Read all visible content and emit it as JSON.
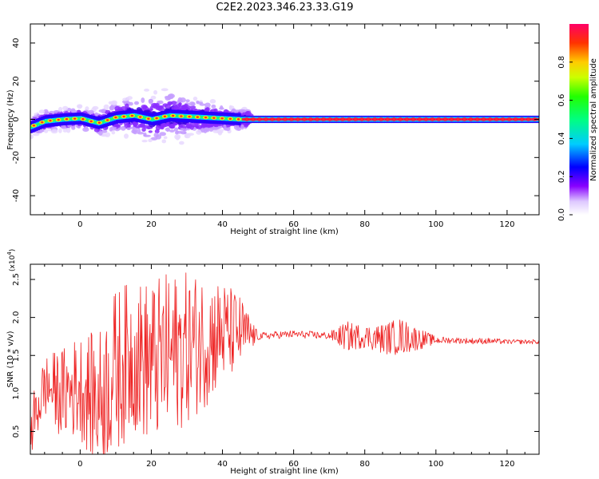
{
  "title": "C2E2.2023.346.23.33.G19",
  "chart_data": [
    {
      "type": "heatmap",
      "name": "spectrogram",
      "xlabel": "Height of straight line (km)",
      "ylabel": "Frequency (Hz)",
      "xlim": [
        -14,
        129
      ],
      "ylim": [
        -50,
        50
      ],
      "xticks": [
        0,
        20,
        40,
        60,
        80,
        100,
        120
      ],
      "yticks": [
        -40,
        -20,
        0,
        20,
        40
      ],
      "colorbar": {
        "label": "Normalized spectral amplitude",
        "range": [
          0.0,
          1.0
        ],
        "ticks": [
          0.0,
          0.2,
          0.4,
          0.6,
          0.8
        ]
      },
      "ridge": [
        [
          -14,
          -4
        ],
        [
          -10,
          -1
        ],
        [
          -5,
          0
        ],
        [
          0,
          0.5
        ],
        [
          5,
          -2
        ],
        [
          10,
          1
        ],
        [
          15,
          2
        ],
        [
          20,
          0
        ],
        [
          25,
          2
        ],
        [
          30,
          1.5
        ],
        [
          35,
          1
        ],
        [
          40,
          0.5
        ],
        [
          45,
          0
        ],
        [
          129,
          0
        ]
      ]
    },
    {
      "type": "line",
      "name": "snr",
      "xlabel": "Height of straight line (km)",
      "ylabel": "SNR (10 * v/v)",
      "y_multiplier": "(x10",
      "y_multiplier_exp": "4",
      "y_multiplier_close": ")",
      "xlim": [
        -14,
        129
      ],
      "ylim": [
        0.2,
        2.7
      ],
      "xticks": [
        0,
        20,
        40,
        60,
        80,
        100,
        120
      ],
      "yticks": [
        0.5,
        1.0,
        1.5,
        2.0,
        2.5
      ],
      "color": "#ee2222",
      "series": [
        {
          "x": [
            -14,
            -10,
            -5,
            0,
            5,
            10,
            15,
            20,
            25,
            30,
            35,
            40,
            45,
            50,
            55,
            60,
            65,
            70,
            75,
            80,
            85,
            90,
            95,
            100,
            105,
            110,
            115,
            120,
            125,
            129
          ],
          "y": [
            0.5,
            1.1,
            1.0,
            1.1,
            0.9,
            1.3,
            1.5,
            1.4,
            1.5,
            1.6,
            1.7,
            1.8,
            1.8,
            1.75,
            1.77,
            1.78,
            1.77,
            1.76,
            1.75,
            1.75,
            1.72,
            1.75,
            1.72,
            1.7,
            1.7,
            1.69,
            1.69,
            1.68,
            1.68,
            1.68
          ],
          "spread": [
            0.4,
            0.4,
            0.6,
            0.7,
            0.9,
            1.1,
            1.0,
            1.1,
            1.1,
            1.0,
            0.9,
            0.7,
            0.5,
            0.05,
            0.05,
            0.05,
            0.05,
            0.05,
            0.2,
            0.15,
            0.2,
            0.25,
            0.15,
            0.05,
            0.04,
            0.04,
            0.04,
            0.03,
            0.03,
            0.03
          ]
        }
      ]
    }
  ]
}
